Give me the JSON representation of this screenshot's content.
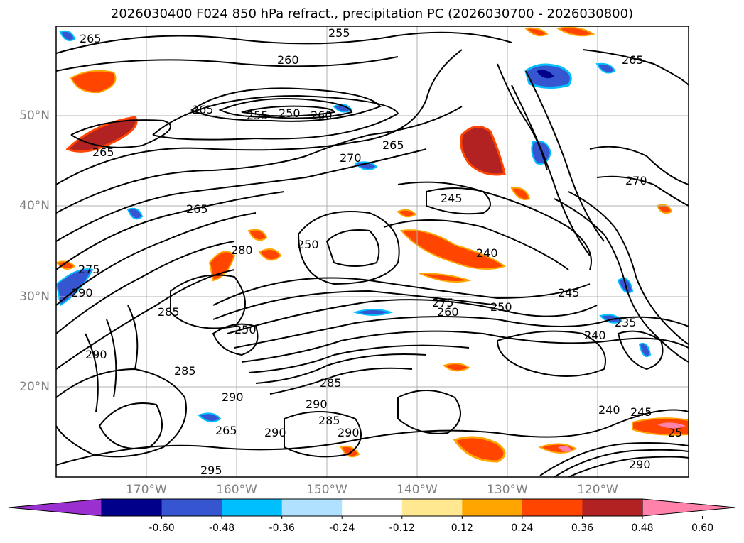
{
  "title": "2026030400 F024 850 hPa refract., precipitation PC (2026030700 - 2026030800)",
  "lat_labels": [
    "50°N",
    "40°N",
    "30°N",
    "20°N"
  ],
  "lon_labels": [
    "170°W",
    "160°W",
    "150°W",
    "140°W",
    "130°W",
    "120°W"
  ],
  "contour_labels": [
    "265",
    "255",
    "260",
    "265",
    "255",
    "250",
    "260",
    "265",
    "270",
    "265",
    "245",
    "240",
    "265",
    "275",
    "290",
    "280",
    "250",
    "285",
    "250",
    "265",
    "270",
    "275",
    "260",
    "250",
    "245",
    "235",
    "240",
    "290",
    "285",
    "290",
    "285",
    "290",
    "285",
    "290",
    "265",
    "295",
    "290",
    "240",
    "245",
    "25",
    "290"
  ],
  "colorbar": {
    "ticks": [
      "-0.60",
      "-0.48",
      "-0.36",
      "-0.24",
      "-0.12",
      "0.12",
      "0.24",
      "0.36",
      "0.48",
      "0.60"
    ],
    "colors": [
      "#9b30d0",
      "#00008b",
      "#3556d0",
      "#00bfff",
      "#b0e2ff",
      "#ffffff",
      "#ffe890",
      "#ffa500",
      "#ff4500",
      "#b22222",
      "#ff82ab"
    ]
  }
}
